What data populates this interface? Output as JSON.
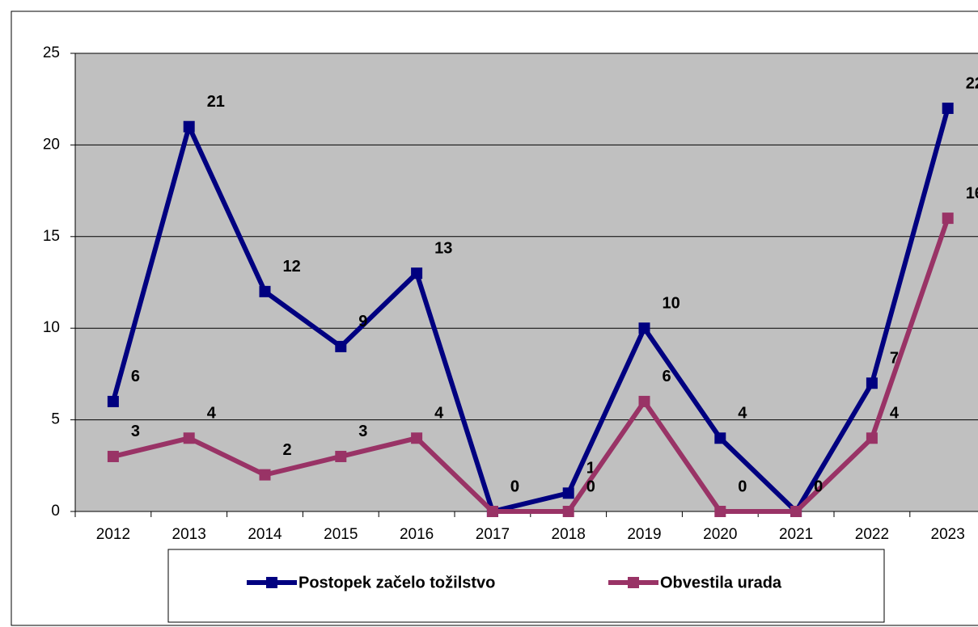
{
  "chart_data": {
    "type": "line",
    "categories": [
      "2012",
      "2013",
      "2014",
      "2015",
      "2016",
      "2017",
      "2018",
      "2019",
      "2020",
      "2021",
      "2022",
      "2023"
    ],
    "series": [
      {
        "name": "Postopek začelo tožilstvo",
        "color": "#000080",
        "values": [
          6,
          21,
          12,
          9,
          13,
          0,
          1,
          10,
          4,
          0,
          7,
          22
        ]
      },
      {
        "name": "Obvestila urada",
        "color": "#993366",
        "values": [
          3,
          4,
          2,
          3,
          4,
          0,
          0,
          6,
          0,
          0,
          4,
          16
        ]
      }
    ],
    "ylim": [
      0,
      25
    ],
    "yticks": [
      0,
      5,
      10,
      15,
      20,
      25
    ],
    "grid": true,
    "legend": "bottom"
  }
}
